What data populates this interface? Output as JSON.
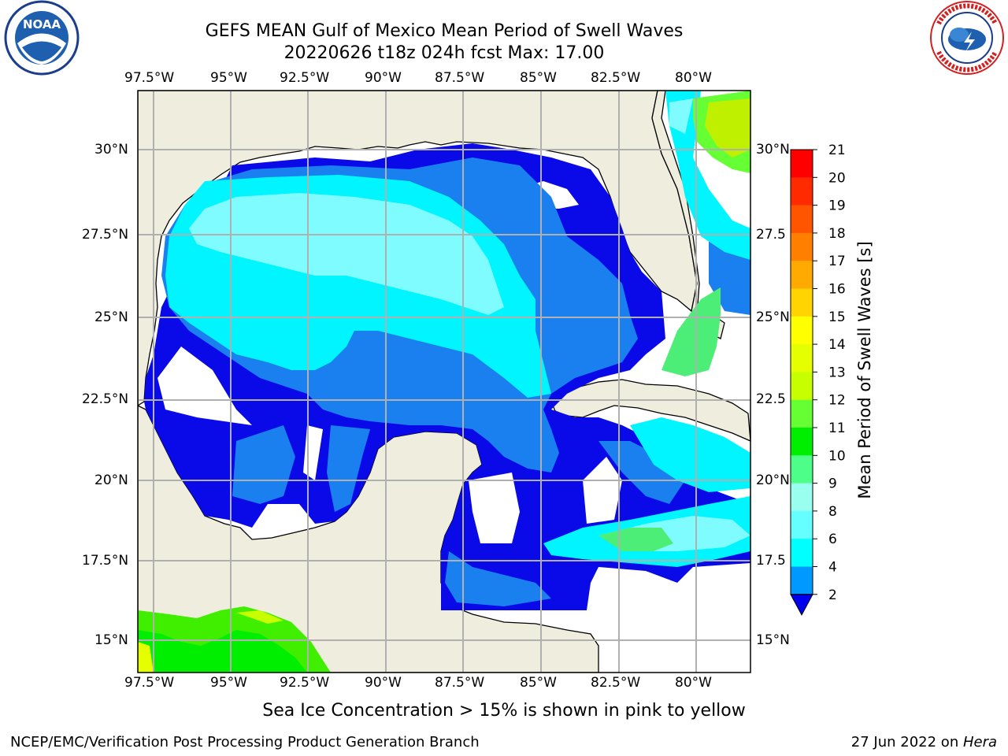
{
  "header": {
    "title_line1": "GEFS MEAN Gulf of Mexico Mean Period of Swell Waves",
    "title_line2": "20220626 t18z 024h fcst   Max: 17.00"
  },
  "logos": {
    "left": "noaa-logo",
    "right": "nws-logo"
  },
  "axes": {
    "lon_labels": [
      "97.5°W",
      "95°W",
      "92.5°W",
      "90°W",
      "87.5°W",
      "85°W",
      "82.5°W",
      "80°W"
    ],
    "lat_labels": [
      "30°N",
      "27.5°N",
      "25°N",
      "22.5°N",
      "20°N",
      "17.5°N",
      "15°N"
    ],
    "lat_labels_right": [
      "30°N",
      "27.5",
      "25°N",
      "22.5",
      "20°N",
      "17.5",
      "15°N"
    ]
  },
  "colorbar": {
    "label": "Mean Period of Swell Waves [s]",
    "ticks": [
      "21",
      "20",
      "19",
      "18",
      "17",
      "16",
      "15",
      "14",
      "13",
      "12",
      "11",
      "10",
      "9",
      "8",
      "6",
      "4",
      "2"
    ],
    "colors": [
      "#ff0000",
      "#ff2a00",
      "#ff5500",
      "#ff8000",
      "#ffaa00",
      "#ffd400",
      "#ffff00",
      "#e6ff00",
      "#c8ff00",
      "#66ff33",
      "#00ee00",
      "#4dff88",
      "#99ffee",
      "#66ffff",
      "#00ffff",
      "#0099ff",
      "#0000ee"
    ]
  },
  "footer": {
    "note": "Sea Ice Concentration > 15% is shown in pink to yellow",
    "left": "NCEP/EMC/Verification Post Processing Product Generation Branch",
    "right_date": "27 Jun 2022 on ",
    "right_host": "Hera"
  }
}
